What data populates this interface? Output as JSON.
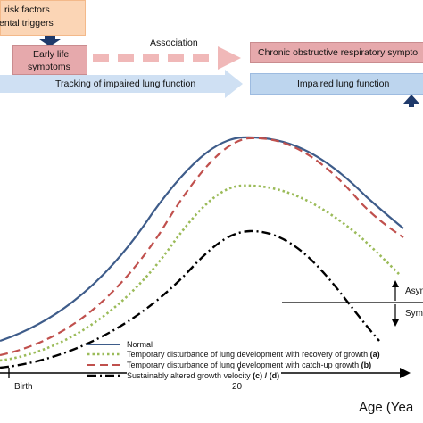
{
  "top_diagram": {
    "risk_line1": "risk factors",
    "risk_line2": "ental triggers",
    "early_line1": "Early life",
    "early_line2": "symptoms",
    "association": "Association",
    "copd_box": "Chronic obstructive respiratory sympto",
    "tracking": "Tracking of impaired lung function",
    "impaired": "Impaired  lung function"
  },
  "chart": {
    "x_ticks": [
      "Birth",
      "20"
    ],
    "age_label": "Age (Yea",
    "asym_label": "Asym",
    "sym_label": "Sym"
  },
  "legend": [
    {
      "label": "Normal",
      "color": "#3e5c8a",
      "style": "solid"
    },
    {
      "label": "Temporary disturbance of lung development with recovery of growth",
      "suffix": "(a)",
      "color": "#9bbb59",
      "style": "dotted"
    },
    {
      "label": "Temporary disturbance of  lung development with catch-up growth",
      "suffix": "(b)",
      "color": "#c0504d",
      "style": "dashed"
    },
    {
      "label": "Sustainably altered growth velocity",
      "suffix": "(c) / (d)",
      "color": "#000000",
      "style": "dash-dot"
    }
  ]
}
